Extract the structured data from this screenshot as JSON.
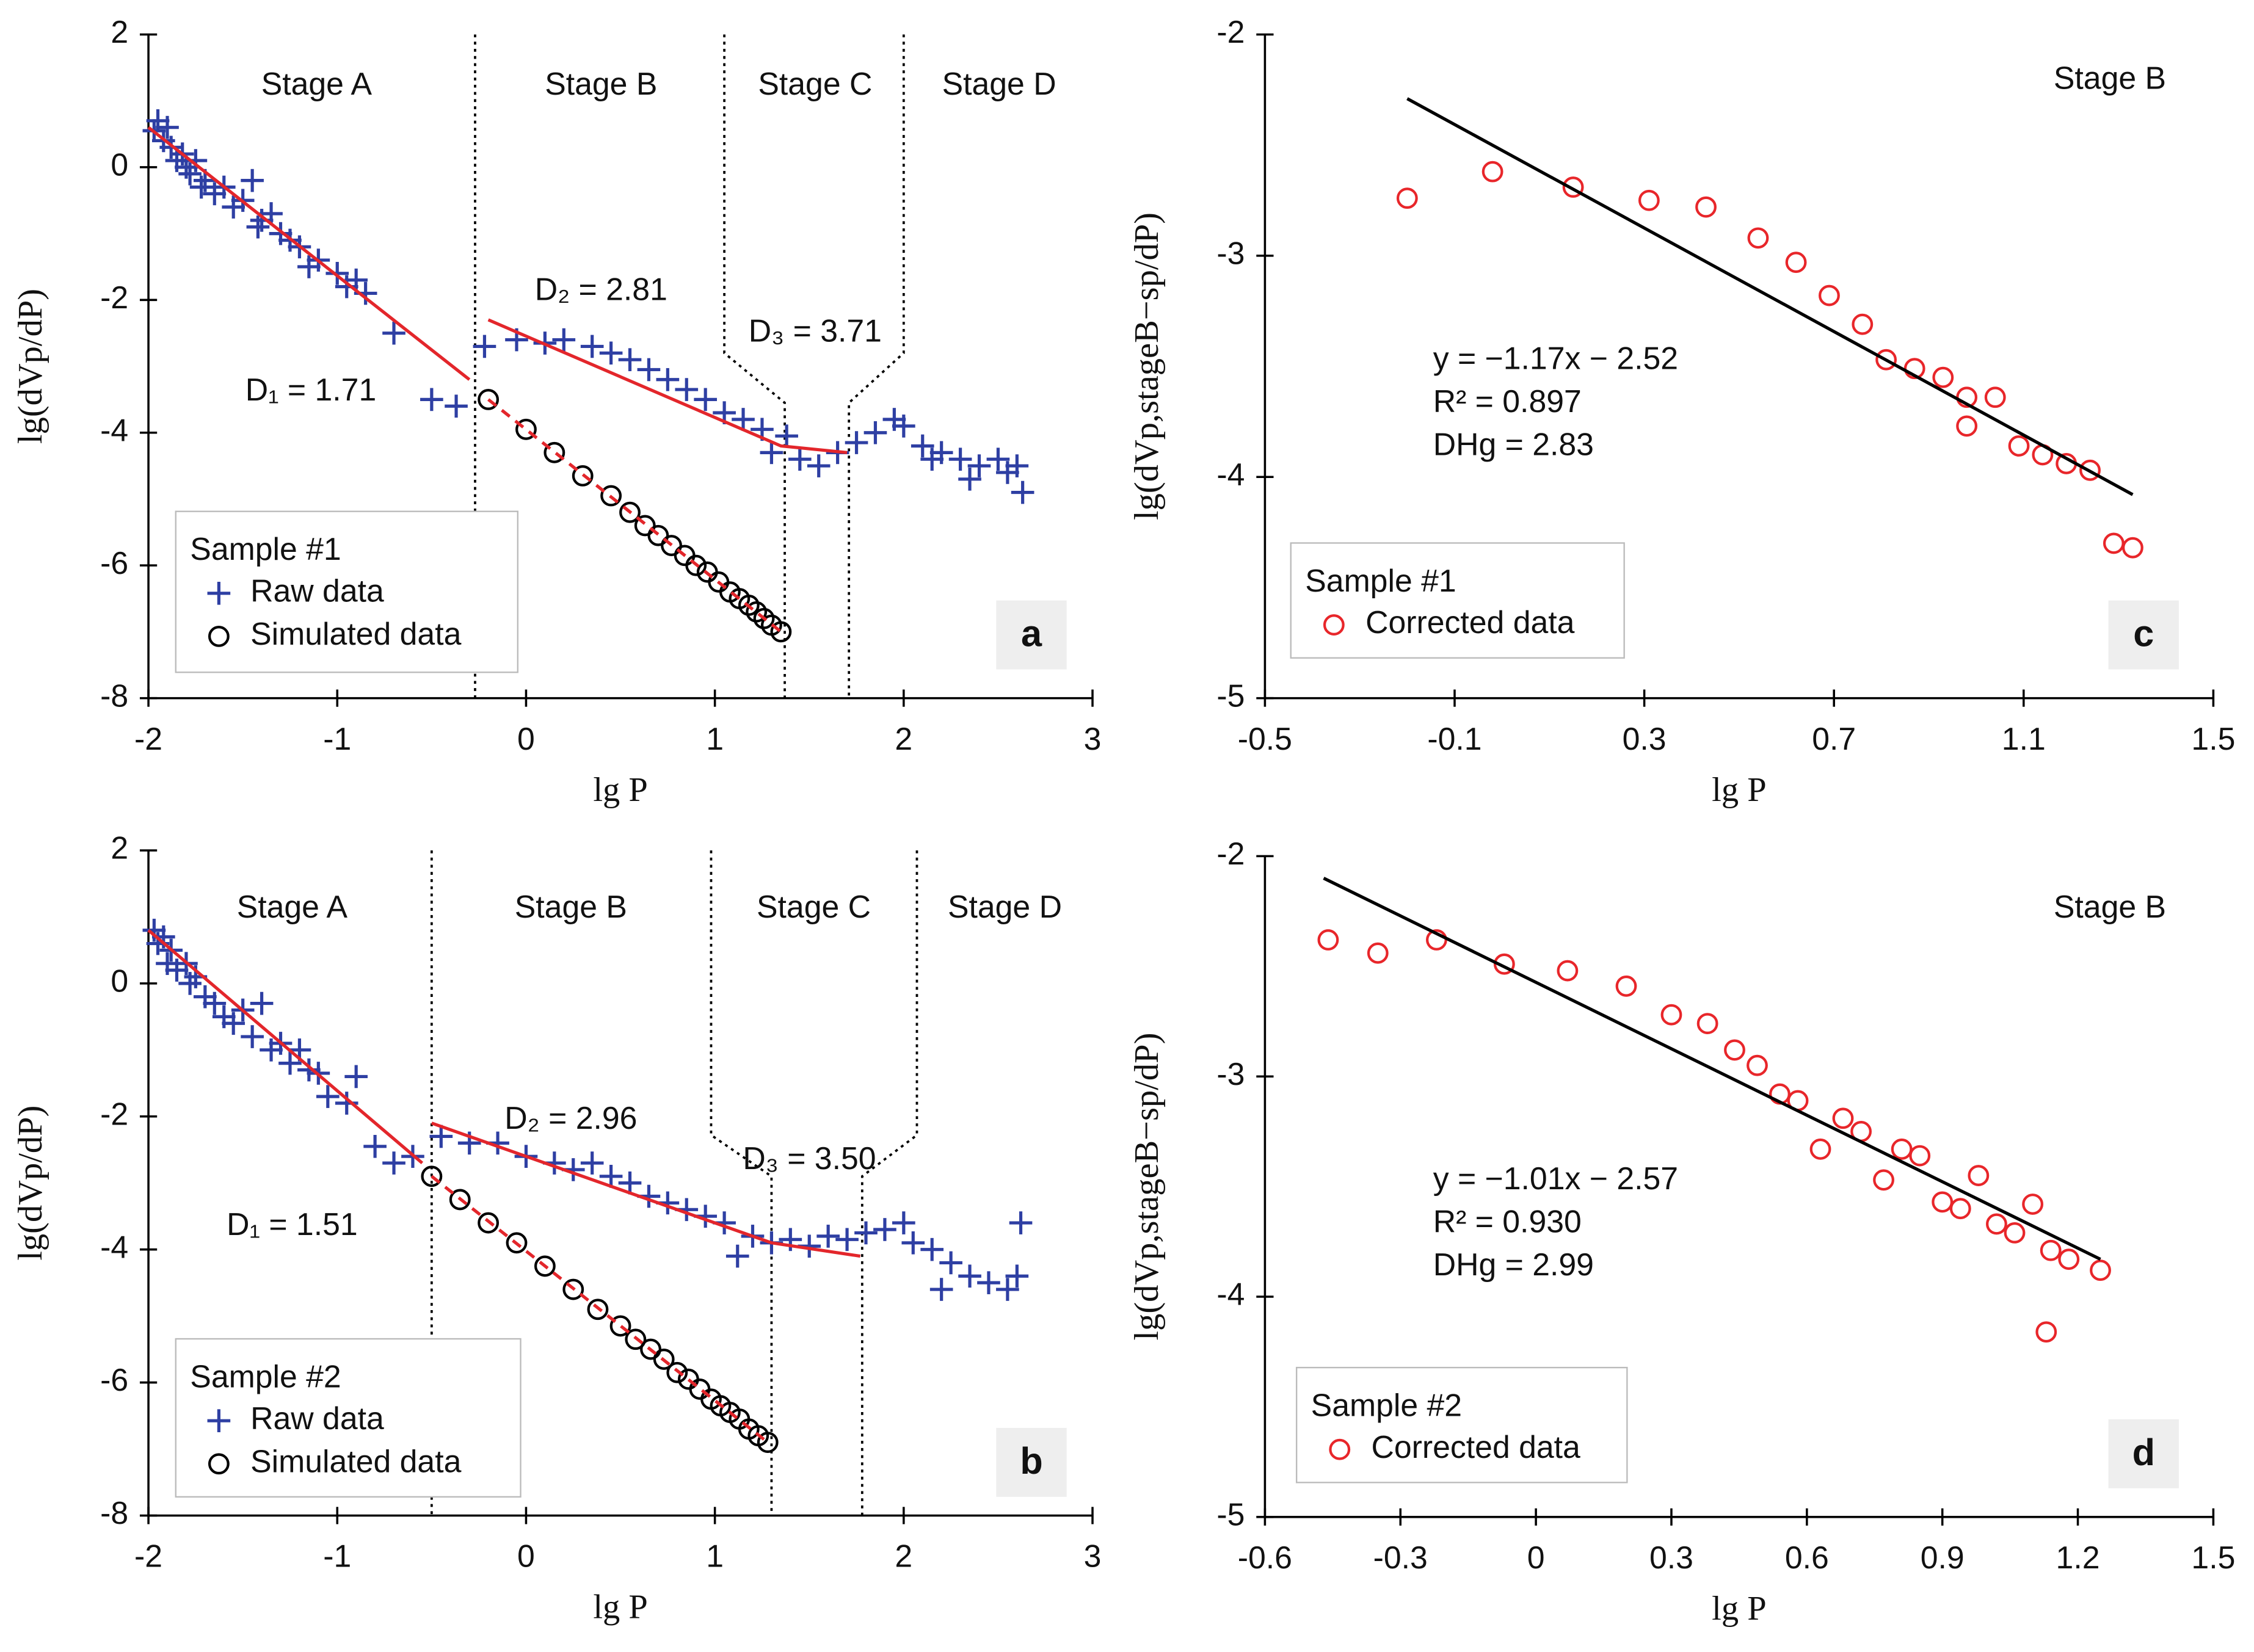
{
  "chart_data": [
    {
      "type": "scatter",
      "xlabel": "lg P",
      "ylabel": "lg(dVp/dP)",
      "xlim": [
        -2,
        3
      ],
      "xticks": [
        -2,
        -1,
        0,
        1,
        2,
        3
      ],
      "ylim": [
        -8,
        2
      ],
      "yticks": [
        -8,
        -6,
        -4,
        -2,
        0,
        2
      ],
      "series": [
        {
          "name": "Raw data",
          "marker": "plus",
          "color": "#2e3fa3",
          "x": [
            -1.97,
            -1.95,
            -1.92,
            -1.9,
            -1.88,
            -1.85,
            -1.82,
            -1.8,
            -1.78,
            -1.75,
            -1.72,
            -1.7,
            -1.65,
            -1.6,
            -1.55,
            -1.5,
            -1.45,
            -1.42,
            -1.4,
            -1.35,
            -1.3,
            -1.25,
            -1.2,
            -1.15,
            -1.1,
            -1.0,
            -0.95,
            -0.9,
            -0.85,
            -0.7,
            -0.5,
            -0.37,
            -0.22,
            -0.05,
            0.1,
            0.2,
            0.35,
            0.45,
            0.55,
            0.65,
            0.75,
            0.85,
            0.95,
            1.05,
            1.15,
            1.25,
            1.3,
            1.38,
            1.45,
            1.55,
            1.65,
            1.75,
            1.85,
            1.95,
            2.0,
            2.1,
            2.15,
            2.2,
            2.3,
            2.35,
            2.4,
            2.5,
            2.55,
            2.6,
            2.63
          ],
          "values": [
            0.55,
            0.7,
            0.4,
            0.6,
            0.3,
            0.1,
            0.2,
            0.0,
            -0.1,
            0.1,
            -0.3,
            -0.2,
            -0.4,
            -0.3,
            -0.6,
            -0.5,
            -0.2,
            -0.9,
            -0.8,
            -0.7,
            -1.0,
            -1.1,
            -1.2,
            -1.5,
            -1.4,
            -1.6,
            -1.8,
            -1.7,
            -1.9,
            -2.5,
            -3.5,
            -3.6,
            -2.7,
            -2.6,
            -2.65,
            -2.6,
            -2.7,
            -2.8,
            -2.9,
            -3.05,
            -3.2,
            -3.35,
            -3.5,
            -3.7,
            -3.8,
            -3.95,
            -4.3,
            -4.05,
            -4.4,
            -4.5,
            -4.3,
            -4.15,
            -4.0,
            -3.8,
            -3.9,
            -4.2,
            -4.4,
            -4.3,
            -4.4,
            -4.7,
            -4.5,
            -4.4,
            -4.6,
            -4.5,
            -4.9
          ]
        },
        {
          "name": "Simulated data",
          "marker": "circle",
          "color": "#000000",
          "x": [
            -0.2,
            0,
            0.15,
            0.3,
            0.45,
            0.55,
            0.63,
            0.7,
            0.77,
            0.84,
            0.9,
            0.96,
            1.02,
            1.08,
            1.13,
            1.18,
            1.22,
            1.26,
            1.3,
            1.35
          ],
          "values": [
            -3.5,
            -3.95,
            -4.3,
            -4.65,
            -4.95,
            -5.2,
            -5.4,
            -5.55,
            -5.7,
            -5.85,
            -6.0,
            -6.1,
            -6.25,
            -6.4,
            -6.5,
            -6.6,
            -6.7,
            -6.8,
            -6.9,
            -7.0
          ]
        }
      ],
      "fit_lines": [
        {
          "color": "#e3262b",
          "dash": false,
          "x": [
            -2,
            -0.3
          ],
          "values": [
            0.6,
            -3.2
          ]
        },
        {
          "color": "#e3262b",
          "dash": false,
          "x": [
            -0.2,
            1.35,
            1.7
          ],
          "values": [
            -2.3,
            -4.2,
            -4.3
          ]
        },
        {
          "color": "#e3262b",
          "dash": true,
          "x": [
            -0.2,
            1.35
          ],
          "values": [
            -3.5,
            -7.0
          ]
        }
      ],
      "stage_bounds": [
        {
          "x": [
            -0.27,
            -0.27
          ],
          "values": [
            2,
            -8
          ]
        },
        {
          "x": [
            1.05,
            1.05,
            1.37,
            1.37
          ],
          "values": [
            2,
            -2.8,
            -3.55,
            -8
          ]
        },
        {
          "x": [
            2.0,
            2.0,
            1.71,
            1.71
          ],
          "values": [
            2,
            -2.8,
            -3.55,
            -8
          ]
        }
      ],
      "annotations": [
        "Stage A",
        "Stage B",
        "Stage C",
        "Stage D",
        "D₂ = 2.81",
        "D₃ = 3.71",
        "D₁ = 1.71"
      ],
      "legend_title": "Sample #1",
      "panel_label": "a"
    },
    {
      "type": "scatter",
      "xlabel": "lg P",
      "ylabel": "lg(dVp/dP)",
      "xlim": [
        -2,
        3
      ],
      "xticks": [
        -2,
        -1,
        0,
        1,
        2,
        3
      ],
      "ylim": [
        -8,
        2
      ],
      "yticks": [
        -8,
        -6,
        -4,
        -2,
        0,
        2
      ],
      "series": [
        {
          "name": "Raw data",
          "marker": "plus",
          "color": "#2e3fa3",
          "x": [
            -1.97,
            -1.95,
            -1.92,
            -1.9,
            -1.88,
            -1.85,
            -1.8,
            -1.78,
            -1.75,
            -1.7,
            -1.65,
            -1.6,
            -1.55,
            -1.5,
            -1.45,
            -1.4,
            -1.35,
            -1.3,
            -1.25,
            -1.2,
            -1.15,
            -1.1,
            -1.05,
            -0.95,
            -0.9,
            -0.8,
            -0.7,
            -0.6,
            -0.45,
            -0.3,
            -0.15,
            0,
            0.15,
            0.25,
            0.35,
            0.45,
            0.55,
            0.65,
            0.75,
            0.85,
            0.95,
            1.05,
            1.12,
            1.2,
            1.3,
            1.4,
            1.5,
            1.6,
            1.7,
            1.8,
            1.9,
            2.0,
            2.05,
            2.15,
            2.2,
            2.25,
            2.35,
            2.45,
            2.55,
            2.6,
            2.62
          ],
          "values": [
            0.8,
            0.6,
            0.7,
            0.3,
            0.5,
            0.2,
            0.3,
            0.0,
            0.1,
            -0.2,
            -0.3,
            -0.5,
            -0.6,
            -0.4,
            -0.8,
            -0.3,
            -1.0,
            -0.9,
            -1.2,
            -1.0,
            -1.3,
            -1.35,
            -1.7,
            -1.8,
            -1.4,
            -2.45,
            -2.7,
            -2.6,
            -2.3,
            -2.4,
            -2.4,
            -2.6,
            -2.7,
            -2.8,
            -2.7,
            -2.9,
            -3.0,
            -3.2,
            -3.3,
            -3.4,
            -3.5,
            -3.6,
            -4.1,
            -3.8,
            -3.9,
            -3.85,
            -3.95,
            -3.8,
            -3.85,
            -3.75,
            -3.7,
            -3.6,
            -3.9,
            -4.0,
            -4.6,
            -4.2,
            -4.4,
            -4.5,
            -4.6,
            -4.4,
            -3.6
          ]
        },
        {
          "name": "Simulated data",
          "marker": "circle",
          "color": "#000000",
          "x": [
            -0.5,
            -0.35,
            -0.2,
            -0.05,
            0.1,
            0.25,
            0.38,
            0.5,
            0.58,
            0.66,
            0.73,
            0.8,
            0.86,
            0.92,
            0.98,
            1.03,
            1.08,
            1.13,
            1.18,
            1.23,
            1.28
          ],
          "values": [
            -2.9,
            -3.25,
            -3.6,
            -3.9,
            -4.25,
            -4.6,
            -4.9,
            -5.15,
            -5.35,
            -5.5,
            -5.65,
            -5.85,
            -5.95,
            -6.1,
            -6.25,
            -6.35,
            -6.45,
            -6.55,
            -6.7,
            -6.8,
            -6.9
          ]
        }
      ],
      "fit_lines": [
        {
          "color": "#e3262b",
          "dash": false,
          "x": [
            -2,
            -0.55
          ],
          "values": [
            0.8,
            -2.7
          ]
        },
        {
          "color": "#e3262b",
          "dash": false,
          "x": [
            -0.5,
            1.3,
            1.77
          ],
          "values": [
            -2.1,
            -3.9,
            -4.1
          ]
        },
        {
          "color": "#e3262b",
          "dash": true,
          "x": [
            -0.5,
            1.28
          ],
          "values": [
            -2.9,
            -6.9
          ]
        }
      ],
      "stage_bounds": [
        {
          "x": [
            -0.5,
            -0.5
          ],
          "values": [
            2,
            -8
          ]
        },
        {
          "x": [
            0.98,
            0.98,
            1.3,
            1.3
          ],
          "values": [
            2,
            -2.28,
            -2.9,
            -8
          ]
        },
        {
          "x": [
            2.07,
            2.07,
            1.78,
            1.78
          ],
          "values": [
            2,
            -2.28,
            -2.9,
            -8
          ]
        }
      ],
      "annotations": [
        "Stage A",
        "Stage B",
        "Stage C",
        "Stage D",
        "D₂ = 2.96",
        "D₃ = 3.50",
        "D₁ = 1.51"
      ],
      "legend_title": "Sample #2",
      "panel_label": "b"
    },
    {
      "type": "scatter",
      "xlabel": "lg P",
      "ylabel": "lg(dVp,stageB−sp/dP)",
      "xlim": [
        -0.5,
        1.5
      ],
      "xticks": [
        -0.5,
        -0.1,
        0.3,
        0.7,
        1.1,
        1.5
      ],
      "ylim": [
        -5,
        -2
      ],
      "yticks": [
        -5,
        -4,
        -3,
        -2
      ],
      "series": [
        {
          "name": "Corrected data",
          "marker": "circle",
          "color": "#e8262a",
          "x": [
            -0.2,
            -0.02,
            0.15,
            0.31,
            0.43,
            0.54,
            0.62,
            0.69,
            0.76,
            0.81,
            0.87,
            0.93,
            0.98,
            1.04,
            0.98,
            1.09,
            1.14,
            1.19,
            1.24,
            1.29,
            1.33
          ],
          "values": [
            -2.74,
            -2.62,
            -2.69,
            -2.75,
            -2.78,
            -2.92,
            -3.03,
            -3.18,
            -3.31,
            -3.47,
            -3.51,
            -3.55,
            -3.64,
            -3.64,
            -3.77,
            -3.86,
            -3.9,
            -3.94,
            -3.97,
            -4.3,
            -4.32
          ]
        }
      ],
      "fit_lines": [
        {
          "color": "#000000",
          "dash": false,
          "x": [
            -0.2,
            1.33
          ],
          "values": [
            -2.29,
            -4.08
          ]
        }
      ],
      "stage_bounds": [],
      "annotations": [
        "Stage B",
        "y = −1.17x − 2.52",
        "R² = 0.897",
        "DHg = 2.83"
      ],
      "legend_title": "Sample #1",
      "panel_label": "c"
    },
    {
      "type": "scatter",
      "xlabel": "lg P",
      "ylabel": "lg(dVp,stageB−sp/dP)",
      "xlim": [
        -0.6,
        1.5
      ],
      "xticks": [
        -0.6,
        -0.3,
        0,
        0.3,
        0.6,
        0.9,
        1.2,
        1.5
      ],
      "ylim": [
        -5,
        -2
      ],
      "yticks": [
        -5,
        -4,
        -3,
        -2
      ],
      "series": [
        {
          "name": "Corrected data",
          "marker": "circle",
          "color": "#e8262a",
          "x": [
            -0.46,
            -0.35,
            -0.22,
            -0.07,
            0.07,
            0.2,
            0.3,
            0.38,
            0.44,
            0.49,
            0.54,
            0.58,
            0.63,
            0.68,
            0.72,
            0.77,
            0.81,
            0.85,
            0.9,
            0.94,
            0.98,
            1.02,
            1.06,
            1.1,
            1.14,
            1.18,
            1.13,
            1.25
          ],
          "values": [
            -2.38,
            -2.44,
            -2.38,
            -2.49,
            -2.52,
            -2.59,
            -2.72,
            -2.76,
            -2.88,
            -2.95,
            -3.08,
            -3.11,
            -3.33,
            -3.19,
            -3.25,
            -3.47,
            -3.33,
            -3.36,
            -3.57,
            -3.6,
            -3.45,
            -3.67,
            -3.71,
            -3.58,
            -3.79,
            -3.83,
            -4.16,
            -3.88
          ]
        }
      ],
      "fit_lines": [
        {
          "color": "#000000",
          "dash": false,
          "x": [
            -0.47,
            1.25
          ],
          "values": [
            -2.1,
            -3.83
          ]
        }
      ],
      "stage_bounds": [],
      "annotations": [
        "Stage B",
        "y = −1.01x − 2.57",
        "R² = 0.930",
        "DHg = 2.99"
      ],
      "legend_title": "Sample #2",
      "panel_label": "d"
    }
  ]
}
